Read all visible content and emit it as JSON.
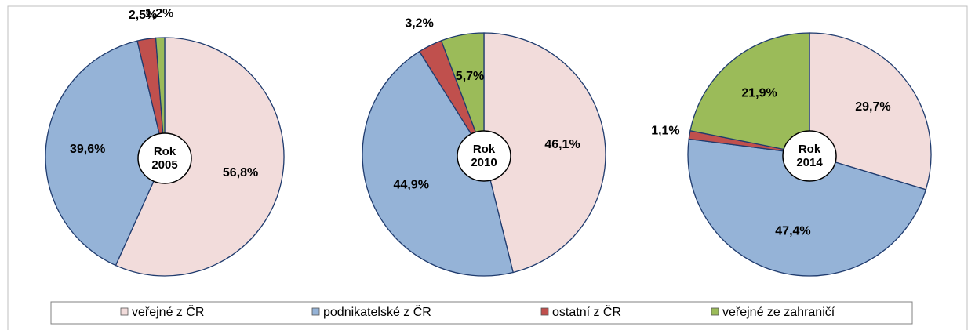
{
  "chart_data": [
    {
      "type": "pie",
      "title": "Rok 2005",
      "categories": [
        "veřejné z ČR",
        "podnikatelské z ČR",
        "ostatní z ČR",
        "veřejné ze zahraničí"
      ],
      "values": [
        56.8,
        39.6,
        2.5,
        1.2
      ],
      "value_labels": [
        "56,8%",
        "39,6%",
        "2,5%",
        "1,2%"
      ],
      "colors": [
        "#f2dcdb",
        "#95b3d7",
        "#c0504d",
        "#9bbb59"
      ]
    },
    {
      "type": "pie",
      "title": "Rok 2010",
      "categories": [
        "veřejné z ČR",
        "podnikatelské z ČR",
        "ostatní z ČR",
        "veřejné ze zahraničí"
      ],
      "values": [
        46.1,
        44.9,
        3.2,
        5.7
      ],
      "value_labels": [
        "46,1%",
        "44,9%",
        "3,2%",
        "5,7%"
      ],
      "colors": [
        "#f2dcdb",
        "#95b3d7",
        "#c0504d",
        "#9bbb59"
      ]
    },
    {
      "type": "pie",
      "title": "Rok 2014",
      "categories": [
        "veřejné z ČR",
        "podnikatelské z ČR",
        "ostatní z ČR",
        "veřejné ze zahraničí"
      ],
      "values": [
        29.7,
        47.4,
        1.1,
        21.9
      ],
      "value_labels": [
        "29,7%",
        "47,4%",
        "1,1%",
        "21,9%"
      ],
      "colors": [
        "#f2dcdb",
        "#95b3d7",
        "#c0504d",
        "#9bbb59"
      ]
    }
  ]
}
